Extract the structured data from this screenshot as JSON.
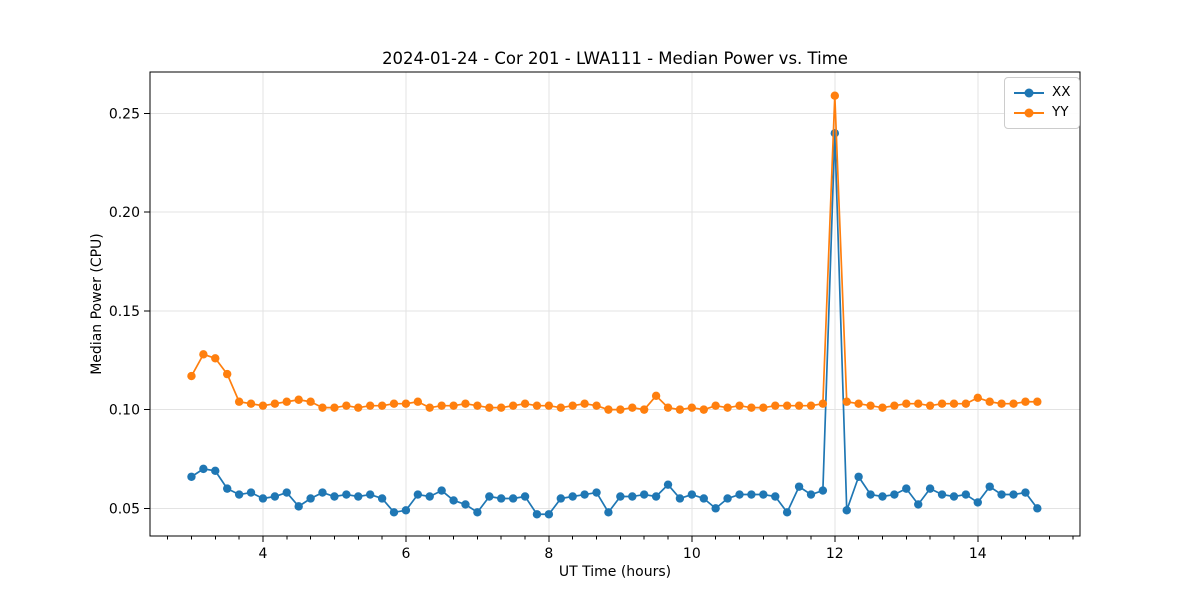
{
  "chart_data": {
    "type": "line",
    "title": "2024-01-24 - Cor 201 - LWA111 - Median Power vs. Time",
    "xlabel": "UT Time (hours)",
    "ylabel": "Median Power (CPU)",
    "xlim": [
      2.42,
      15.43
    ],
    "ylim": [
      0.036,
      0.271
    ],
    "xticks": [
      4,
      6,
      8,
      10,
      12,
      14
    ],
    "xtick_labels": [
      "4",
      "6",
      "8",
      "10",
      "12",
      "14"
    ],
    "yticks": [
      0.05,
      0.1,
      0.15,
      0.2,
      0.25
    ],
    "ytick_labels": [
      "0.05",
      "0.10",
      "0.15",
      "0.20",
      "0.25"
    ],
    "minor_xtick_step": 0.33333,
    "grid": true,
    "legend_position": "upper right",
    "x": [
      3.0,
      3.167,
      3.333,
      3.5,
      3.667,
      3.833,
      4.0,
      4.167,
      4.333,
      4.5,
      4.667,
      4.833,
      5.0,
      5.167,
      5.333,
      5.5,
      5.667,
      5.833,
      6.0,
      6.167,
      6.333,
      6.5,
      6.667,
      6.833,
      7.0,
      7.167,
      7.333,
      7.5,
      7.667,
      7.833,
      8.0,
      8.167,
      8.333,
      8.5,
      8.667,
      8.833,
      9.0,
      9.167,
      9.333,
      9.5,
      9.667,
      9.833,
      10.0,
      10.167,
      10.333,
      10.5,
      10.667,
      10.833,
      11.0,
      11.167,
      11.333,
      11.5,
      11.667,
      11.833,
      12.0,
      12.167,
      12.333,
      12.5,
      12.667,
      12.833,
      13.0,
      13.167,
      13.333,
      13.5,
      13.667,
      13.833,
      14.0,
      14.167,
      14.333,
      14.5,
      14.667,
      14.833
    ],
    "series": [
      {
        "name": "XX",
        "color": "#1f77b4",
        "values": [
          0.066,
          0.07,
          0.069,
          0.06,
          0.057,
          0.058,
          0.055,
          0.056,
          0.058,
          0.051,
          0.055,
          0.058,
          0.056,
          0.057,
          0.056,
          0.057,
          0.055,
          0.048,
          0.049,
          0.057,
          0.056,
          0.059,
          0.054,
          0.052,
          0.048,
          0.056,
          0.055,
          0.055,
          0.056,
          0.047,
          0.047,
          0.055,
          0.056,
          0.057,
          0.058,
          0.048,
          0.056,
          0.056,
          0.057,
          0.056,
          0.062,
          0.055,
          0.057,
          0.055,
          0.05,
          0.055,
          0.057,
          0.057,
          0.057,
          0.056,
          0.048,
          0.061,
          0.057,
          0.059,
          0.24,
          0.049,
          0.066,
          0.057,
          0.056,
          0.057,
          0.06,
          0.052,
          0.06,
          0.057,
          0.056,
          0.057,
          0.053,
          0.061,
          0.057,
          0.057,
          0.058,
          0.05
        ]
      },
      {
        "name": "YY",
        "color": "#ff7f0e",
        "values": [
          0.117,
          0.128,
          0.126,
          0.118,
          0.104,
          0.103,
          0.102,
          0.103,
          0.104,
          0.105,
          0.104,
          0.101,
          0.101,
          0.102,
          0.101,
          0.102,
          0.102,
          0.103,
          0.103,
          0.104,
          0.101,
          0.102,
          0.102,
          0.103,
          0.102,
          0.101,
          0.101,
          0.102,
          0.103,
          0.102,
          0.102,
          0.101,
          0.102,
          0.103,
          0.102,
          0.1,
          0.1,
          0.101,
          0.1,
          0.107,
          0.101,
          0.1,
          0.101,
          0.1,
          0.102,
          0.101,
          0.102,
          0.101,
          0.101,
          0.102,
          0.102,
          0.102,
          0.102,
          0.103,
          0.259,
          0.104,
          0.103,
          0.102,
          0.101,
          0.102,
          0.103,
          0.103,
          0.102,
          0.103,
          0.103,
          0.103,
          0.106,
          0.104,
          0.103,
          0.103,
          0.104,
          0.104
        ]
      }
    ],
    "annotations": {
      "spike_time_hours": 12.0,
      "spike_xx_value": 0.24,
      "spike_yy_value": 0.259
    }
  },
  "colors": {
    "grid": "#e3e3e3",
    "spine": "#000000",
    "background": "#ffffff"
  }
}
